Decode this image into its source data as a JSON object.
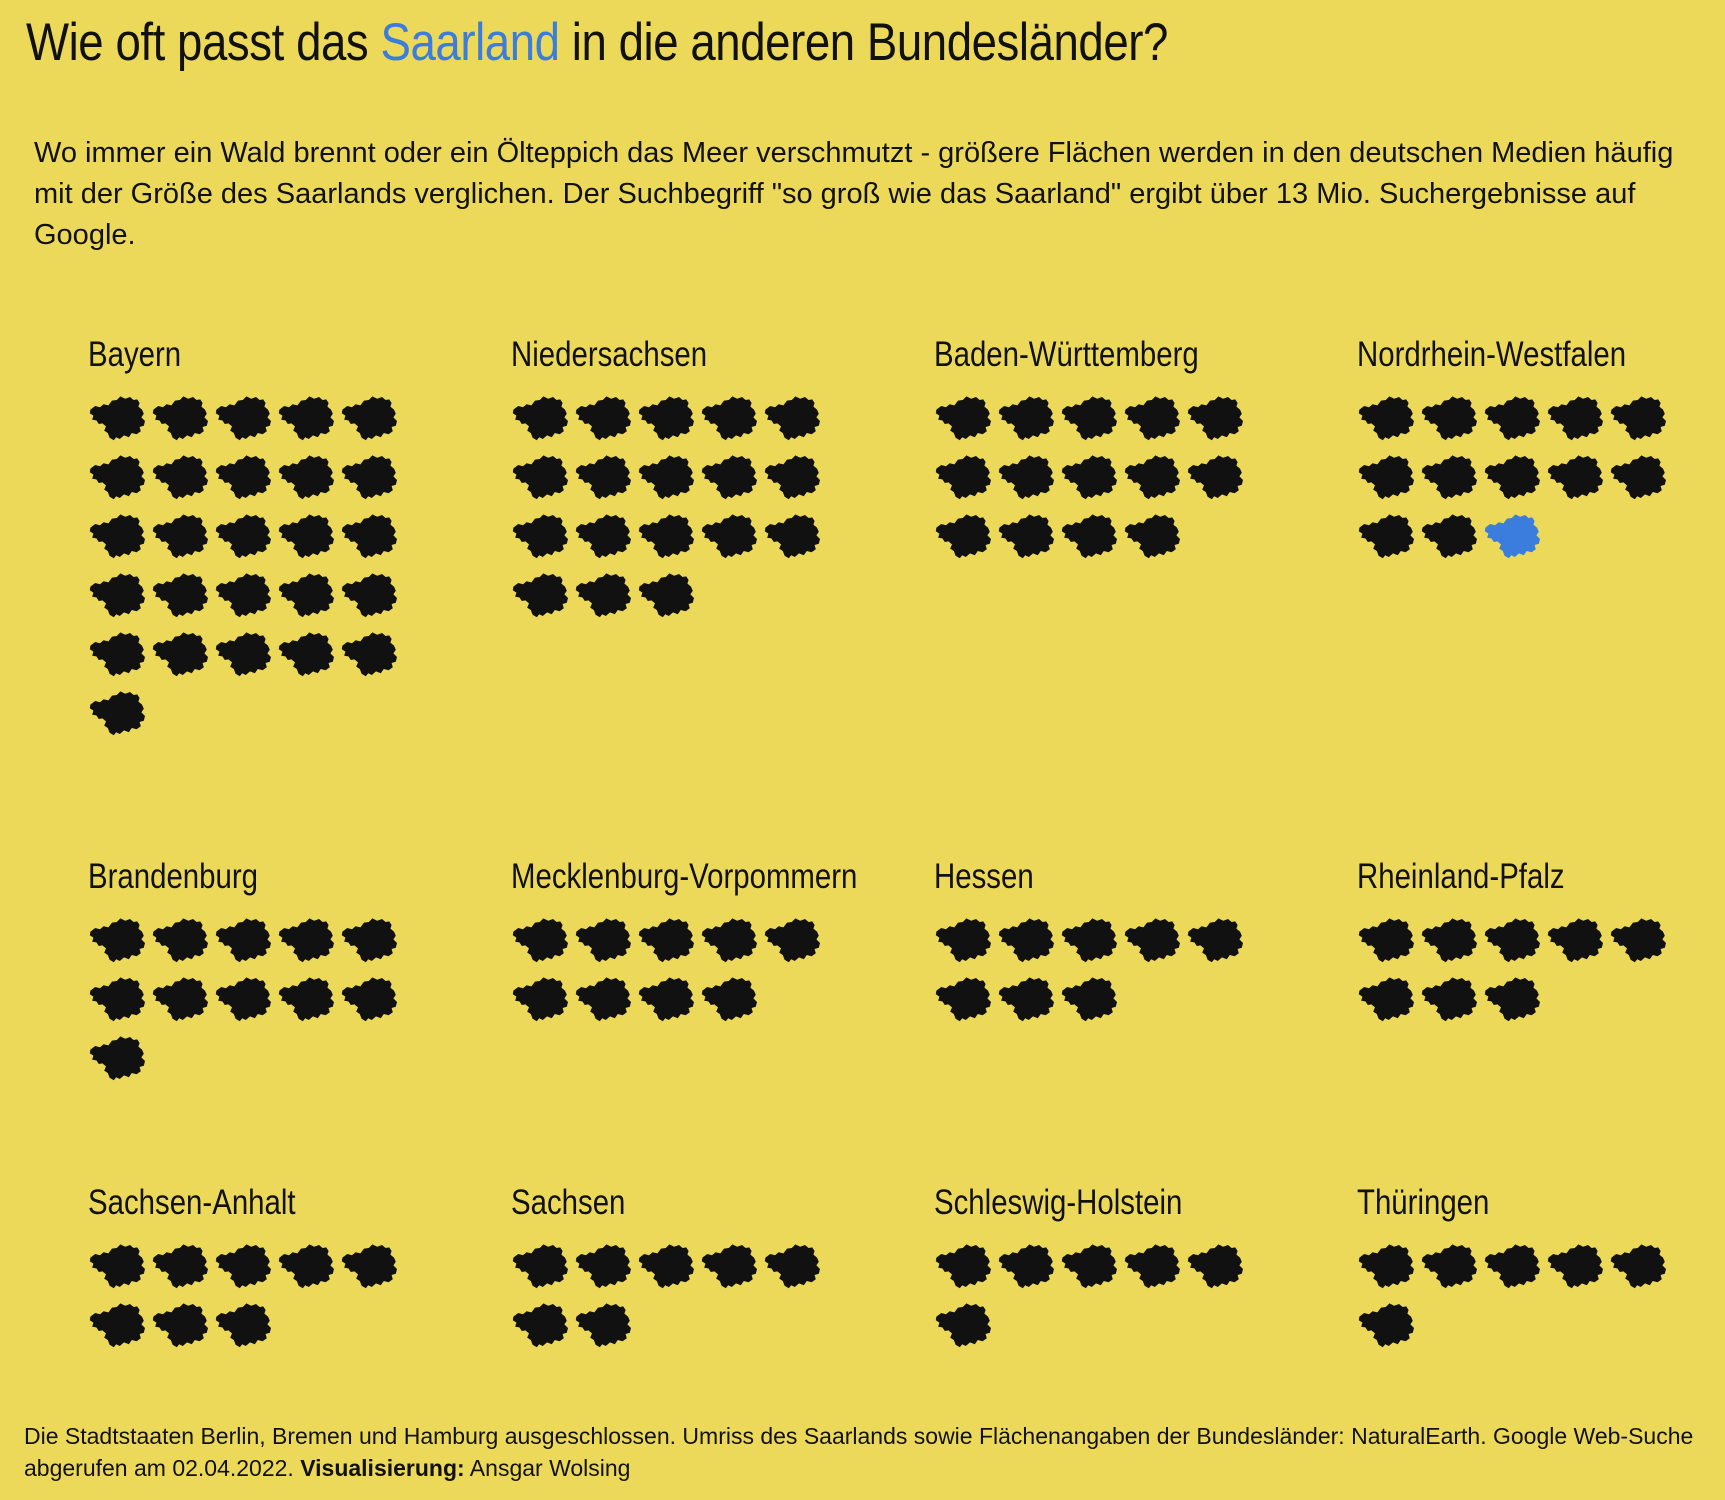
{
  "title": {
    "before": "Wie oft passt das ",
    "highlight": "Saarland",
    "after": " in die anderen Bundesländer?"
  },
  "subtitle": "Wo immer ein Wald brennt oder ein Ölteppich das Meer verschmutzt - größere Flächen werden in den deutschen Medien häufig mit der Größe des Saarlands verglichen. Der Suchbegriff \"so groß wie das Saarland\" ergibt über 13 Mio. Suchergebnisse auf Google.",
  "colors": {
    "background": "#ECD959",
    "icon": "#111111",
    "highlight": "#3B7DDD"
  },
  "icon": "saarland-outline-icon",
  "chart_data": {
    "type": "pictogram",
    "unit": "Saarland",
    "icons_per_row": 5,
    "states": [
      {
        "name": "Bayern",
        "icons": 26,
        "highlighted_icon": null
      },
      {
        "name": "Niedersachsen",
        "icons": 18,
        "highlighted_icon": null
      },
      {
        "name": "Baden-Württemberg",
        "icons": 14,
        "highlighted_icon": null
      },
      {
        "name": "Nordrhein-Westfalen",
        "icons": 13,
        "highlighted_icon": 13
      },
      {
        "name": "Brandenburg",
        "icons": 11,
        "highlighted_icon": null
      },
      {
        "name": "Mecklenburg-Vorpommern",
        "icons": 9,
        "highlighted_icon": null
      },
      {
        "name": "Hessen",
        "icons": 8,
        "highlighted_icon": null
      },
      {
        "name": "Rheinland-Pfalz",
        "icons": 8,
        "highlighted_icon": null
      },
      {
        "name": "Sachsen-Anhalt",
        "icons": 8,
        "highlighted_icon": null
      },
      {
        "name": "Sachsen",
        "icons": 7,
        "highlighted_icon": null
      },
      {
        "name": "Schleswig-Holstein",
        "icons": 6,
        "highlighted_icon": null
      },
      {
        "name": "Thüringen",
        "icons": 6,
        "highlighted_icon": null
      }
    ]
  },
  "footer": {
    "line1": "Die Stadtstaaten Berlin, Bremen und Hamburg ausgeschlossen. Umriss des Saarlands sowie Flächenangaben der Bundesländer: NaturalEarth. Google Web-Suche abgerufen am 02.04.2022. ",
    "credit_label": "Visualisierung:",
    "credit_name": " Ansgar Wolsing"
  }
}
